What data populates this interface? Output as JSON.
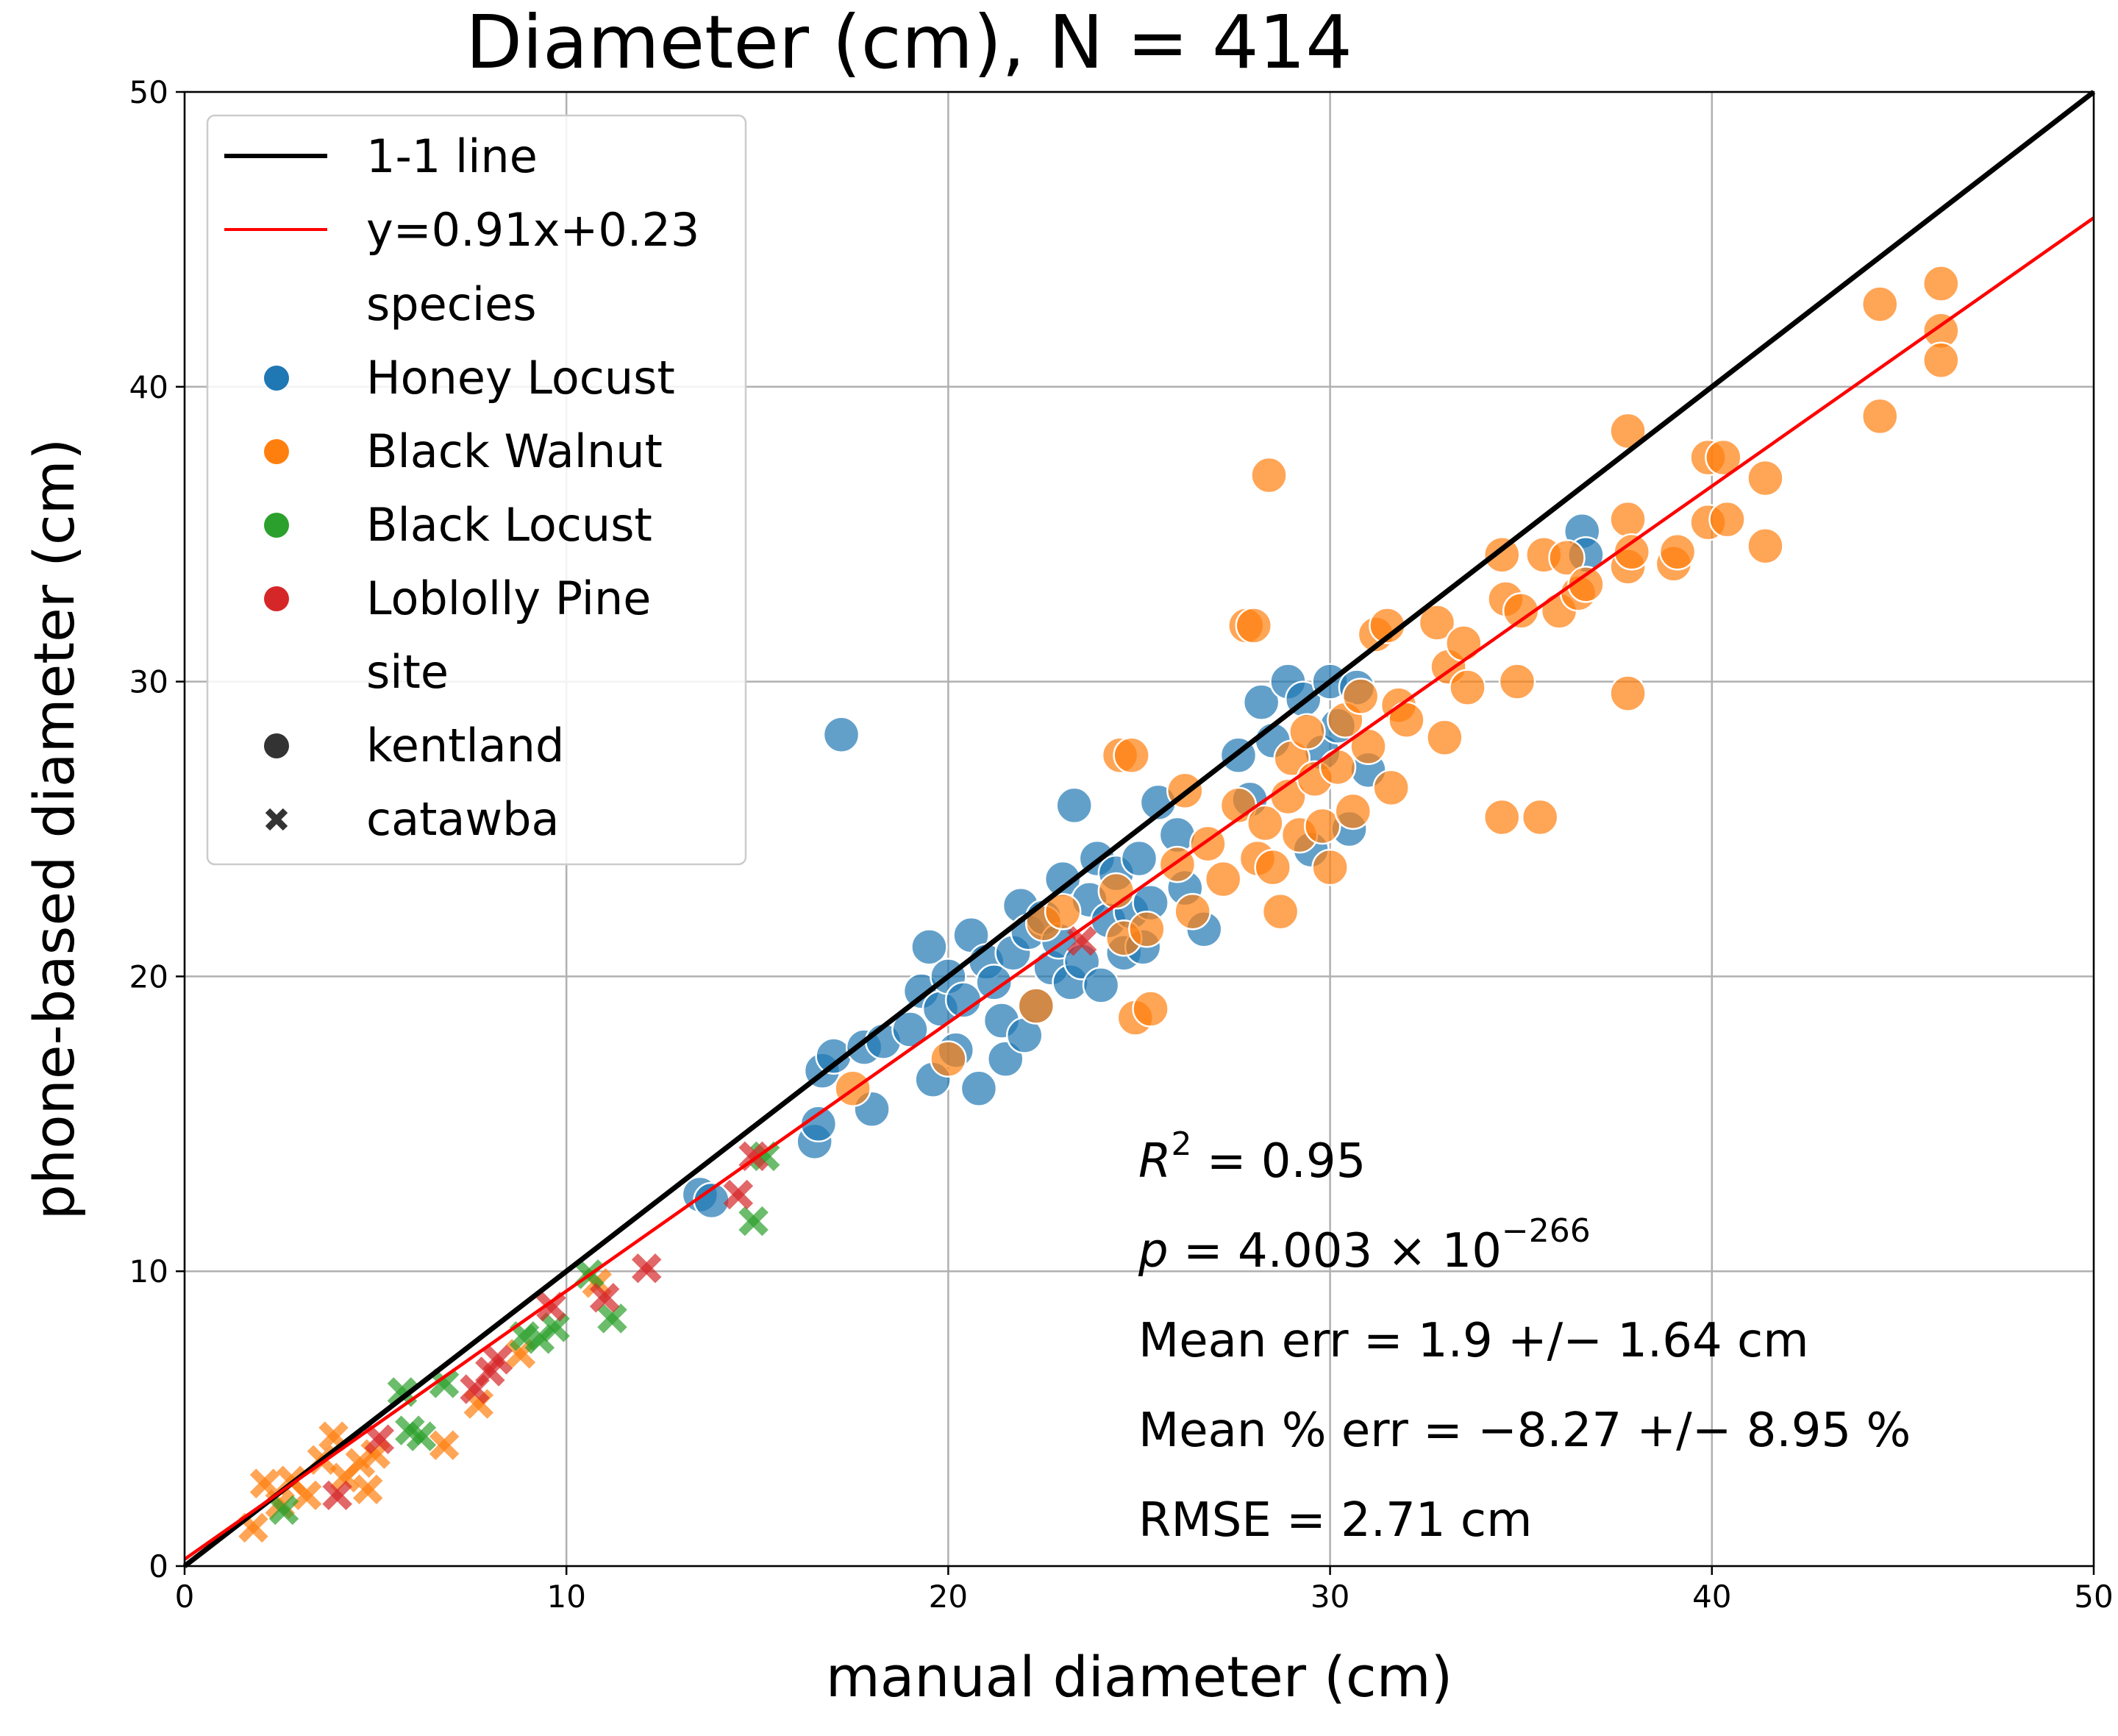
{
  "chart_data": {
    "type": "scatter",
    "title": "Diameter (cm), N = 414",
    "xlabel": "manual diameter (cm)",
    "ylabel": "phone-based diameter (cm)",
    "xlim": [
      0,
      50
    ],
    "ylim": [
      0,
      50
    ],
    "xticks": [
      0,
      10,
      20,
      30,
      40,
      50
    ],
    "yticks": [
      0,
      10,
      20,
      30,
      40,
      50
    ],
    "grid": true,
    "legend_position": "top-left",
    "lines": [
      {
        "name": "1-1 line",
        "color": "#000000",
        "slope": 1.0,
        "intercept": 0.0
      },
      {
        "name": "y=0.91x+0.23",
        "color": "#ff0000",
        "slope": 0.91,
        "intercept": 0.23
      }
    ],
    "legend": {
      "species_header": "species",
      "site_header": "site",
      "sites": [
        {
          "name": "kentland",
          "marker": "circle"
        },
        {
          "name": "catawba",
          "marker": "x"
        }
      ]
    },
    "series": [
      {
        "name": "Honey Locust",
        "color": "#1f77b4",
        "site": "kentland",
        "marker": "circle",
        "points": [
          [
            17.2,
            28.2
          ],
          [
            16.5,
            14.4
          ],
          [
            16.6,
            15.0
          ],
          [
            16.7,
            16.8
          ],
          [
            17.0,
            17.3
          ],
          [
            17.8,
            17.6
          ],
          [
            18.0,
            15.5
          ],
          [
            18.3,
            17.8
          ],
          [
            19.0,
            18.2
          ],
          [
            19.3,
            19.5
          ],
          [
            19.5,
            21.0
          ],
          [
            19.6,
            16.5
          ],
          [
            19.8,
            18.9
          ],
          [
            20.0,
            20.0
          ],
          [
            20.2,
            17.5
          ],
          [
            20.4,
            19.2
          ],
          [
            20.6,
            21.4
          ],
          [
            20.8,
            16.2
          ],
          [
            21.0,
            20.5
          ],
          [
            21.2,
            19.8
          ],
          [
            21.4,
            18.5
          ],
          [
            21.5,
            17.2
          ],
          [
            21.7,
            20.8
          ],
          [
            21.9,
            22.4
          ],
          [
            22.0,
            18.0
          ],
          [
            22.1,
            21.5
          ],
          [
            22.3,
            19.0
          ],
          [
            22.5,
            22.0
          ],
          [
            22.7,
            20.3
          ],
          [
            22.9,
            21.2
          ],
          [
            23.0,
            23.3
          ],
          [
            23.2,
            19.8
          ],
          [
            23.3,
            25.8
          ],
          [
            23.5,
            20.5
          ],
          [
            23.7,
            22.6
          ],
          [
            23.9,
            24.0
          ],
          [
            24.0,
            19.7
          ],
          [
            24.2,
            21.9
          ],
          [
            24.4,
            23.5
          ],
          [
            24.6,
            20.8
          ],
          [
            24.8,
            22.2
          ],
          [
            25.0,
            24.0
          ],
          [
            25.1,
            21.0
          ],
          [
            25.3,
            22.5
          ],
          [
            25.5,
            25.9
          ],
          [
            26.0,
            24.8
          ],
          [
            26.2,
            23.0
          ],
          [
            26.7,
            21.6
          ],
          [
            27.6,
            27.5
          ],
          [
            27.9,
            26.0
          ],
          [
            28.2,
            29.3
          ],
          [
            28.5,
            28.0
          ],
          [
            28.9,
            30.0
          ],
          [
            29.3,
            29.4
          ],
          [
            29.5,
            24.3
          ],
          [
            29.8,
            27.6
          ],
          [
            30.0,
            30.0
          ],
          [
            30.2,
            28.5
          ],
          [
            30.5,
            25.0
          ],
          [
            30.7,
            29.8
          ],
          [
            31.0,
            27.0
          ],
          [
            36.6,
            35.1
          ],
          [
            36.7,
            34.3
          ],
          [
            13.5,
            12.6
          ],
          [
            13.8,
            12.4
          ]
        ]
      },
      {
        "name": "Black Walnut",
        "color": "#ff7f0e",
        "site": "kentland",
        "marker": "circle",
        "points": [
          [
            17.5,
            16.2
          ],
          [
            20.0,
            17.2
          ],
          [
            22.3,
            19.0
          ],
          [
            22.5,
            21.8
          ],
          [
            23.0,
            22.2
          ],
          [
            24.5,
            27.5
          ],
          [
            24.8,
            27.5
          ],
          [
            24.4,
            22.9
          ],
          [
            24.6,
            21.3
          ],
          [
            24.9,
            18.6
          ],
          [
            25.3,
            18.9
          ],
          [
            25.2,
            21.6
          ],
          [
            26.0,
            23.8
          ],
          [
            26.2,
            26.3
          ],
          [
            26.4,
            22.2
          ],
          [
            26.8,
            24.5
          ],
          [
            27.2,
            23.3
          ],
          [
            27.6,
            25.8
          ],
          [
            27.8,
            31.9
          ],
          [
            28.0,
            31.9
          ],
          [
            28.1,
            24.0
          ],
          [
            28.3,
            25.2
          ],
          [
            28.5,
            23.7
          ],
          [
            28.4,
            37.0
          ],
          [
            28.7,
            22.2
          ],
          [
            28.9,
            26.1
          ],
          [
            29.0,
            27.4
          ],
          [
            29.2,
            24.8
          ],
          [
            29.4,
            28.3
          ],
          [
            29.6,
            26.7
          ],
          [
            29.8,
            25.1
          ],
          [
            30.0,
            23.7
          ],
          [
            30.2,
            27.1
          ],
          [
            30.4,
            28.7
          ],
          [
            30.6,
            25.6
          ],
          [
            30.8,
            29.5
          ],
          [
            31.0,
            27.8
          ],
          [
            31.2,
            31.6
          ],
          [
            31.5,
            31.9
          ],
          [
            31.6,
            26.4
          ],
          [
            31.8,
            29.2
          ],
          [
            32.0,
            28.7
          ],
          [
            32.8,
            32.0
          ],
          [
            33.0,
            28.1
          ],
          [
            33.1,
            30.5
          ],
          [
            33.5,
            31.3
          ],
          [
            33.6,
            29.8
          ],
          [
            34.5,
            34.3
          ],
          [
            34.6,
            32.8
          ],
          [
            34.5,
            25.4
          ],
          [
            34.9,
            30.0
          ],
          [
            35.0,
            32.4
          ],
          [
            35.6,
            34.3
          ],
          [
            35.5,
            25.4
          ],
          [
            36.0,
            32.4
          ],
          [
            36.2,
            34.2
          ],
          [
            36.5,
            33.0
          ],
          [
            36.7,
            33.3
          ],
          [
            37.8,
            38.5
          ],
          [
            37.8,
            35.5
          ],
          [
            37.8,
            33.9
          ],
          [
            37.8,
            29.6
          ],
          [
            37.9,
            34.4
          ],
          [
            39.0,
            34.0
          ],
          [
            39.1,
            34.4
          ],
          [
            39.9,
            37.6
          ],
          [
            39.9,
            35.4
          ],
          [
            40.3,
            37.6
          ],
          [
            40.4,
            35.5
          ],
          [
            41.4,
            36.9
          ],
          [
            41.4,
            34.6
          ],
          [
            44.4,
            42.8
          ],
          [
            44.4,
            39.0
          ],
          [
            46.0,
            43.5
          ],
          [
            46.0,
            41.9
          ],
          [
            46.0,
            40.9
          ]
        ]
      },
      {
        "name": "Black Walnut",
        "color": "#ff7f0e",
        "site": "catawba",
        "marker": "x",
        "points": [
          [
            1.8,
            1.3
          ],
          [
            2.1,
            2.8
          ],
          [
            2.5,
            2.1
          ],
          [
            2.8,
            2.9
          ],
          [
            3.2,
            2.4
          ],
          [
            3.6,
            3.6
          ],
          [
            3.9,
            4.4
          ],
          [
            4.2,
            3.0
          ],
          [
            4.6,
            3.5
          ],
          [
            4.8,
            2.6
          ],
          [
            5.0,
            3.8
          ],
          [
            6.8,
            4.1
          ],
          [
            7.7,
            5.5
          ],
          [
            8.8,
            7.2
          ],
          [
            10.8,
            9.6
          ]
        ]
      },
      {
        "name": "Black Locust",
        "color": "#2ca02c",
        "site": "catawba",
        "marker": "x",
        "points": [
          [
            2.6,
            1.9
          ],
          [
            5.7,
            5.9
          ],
          [
            5.9,
            4.6
          ],
          [
            6.2,
            4.4
          ],
          [
            6.8,
            6.2
          ],
          [
            8.9,
            7.8
          ],
          [
            9.3,
            7.7
          ],
          [
            9.7,
            8.1
          ],
          [
            10.6,
            9.9
          ],
          [
            11.2,
            8.4
          ],
          [
            14.9,
            11.7
          ],
          [
            15.2,
            13.9
          ]
        ]
      },
      {
        "name": "Loblolly Pine",
        "color": "#d62728",
        "site": "catawba",
        "marker": "x",
        "points": [
          [
            4.0,
            2.4
          ],
          [
            5.1,
            4.3
          ],
          [
            7.6,
            6.0
          ],
          [
            8.0,
            6.6
          ],
          [
            8.2,
            7.0
          ],
          [
            9.6,
            8.8
          ],
          [
            11.0,
            9.1
          ],
          [
            12.1,
            10.1
          ],
          [
            14.5,
            12.6
          ],
          [
            14.9,
            13.9
          ],
          [
            23.5,
            21.2
          ]
        ]
      }
    ],
    "annotations": {
      "r2_symbol": "R",
      "r2_exp": "2",
      "r2_rest": " = 0.95",
      "p_symbol": "p",
      "p_rest": " = 4.003 × 10",
      "p_exp": "−266",
      "mean_err": "Mean err = 1.9 +/− 1.64 cm",
      "mean_pct_err": "Mean % err = −8.27 +/− 8.95 %",
      "rmse": "RMSE = 2.71 cm"
    }
  }
}
